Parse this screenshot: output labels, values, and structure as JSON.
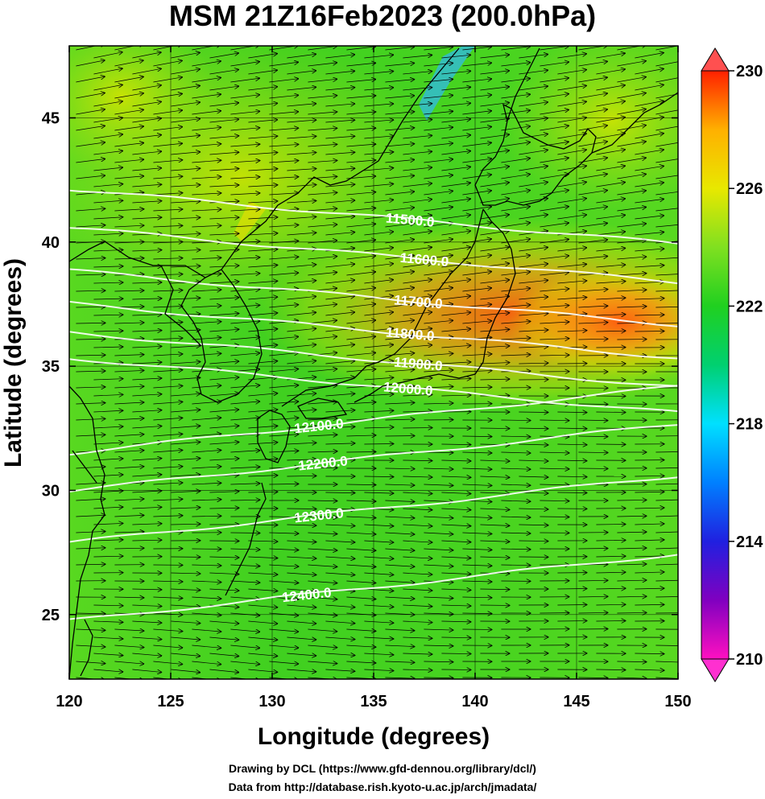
{
  "title": "MSM 21Z16Feb2023 (200.0hPa)",
  "x_axis": {
    "label": "Longitude (degrees)",
    "min": 120,
    "max": 150,
    "ticks": [
      "120",
      "125",
      "130",
      "135",
      "140",
      "145",
      "150"
    ]
  },
  "y_axis": {
    "label": "Latitude  (degrees)",
    "min": 22.4,
    "max": 47.9,
    "ticks": [
      "25",
      "30",
      "35",
      "40",
      "45"
    ]
  },
  "colorbar": {
    "min": 210,
    "max": 230,
    "labels": [
      "230",
      "226",
      "222",
      "218",
      "214",
      "210"
    ],
    "colors": [
      "#ff10c0",
      "#8000c0",
      "#2020e0",
      "#0080ff",
      "#00e0ff",
      "#00d070",
      "#20d020",
      "#80e020",
      "#e8e800",
      "#ffb000",
      "#ff5000",
      "#ff2000"
    ]
  },
  "contours": [
    {
      "label": "11500.0",
      "lon": 136.8,
      "lat": 40.9
    },
    {
      "label": "11600.0",
      "lon": 137.5,
      "lat": 39.3
    },
    {
      "label": "11700.0",
      "lon": 137.2,
      "lat": 37.6
    },
    {
      "label": "11800.0",
      "lon": 136.8,
      "lat": 36.3
    },
    {
      "label": "11900.0",
      "lon": 137.2,
      "lat": 35.1
    },
    {
      "label": "12000.0",
      "lon": 136.7,
      "lat": 34.1
    },
    {
      "label": "12100.0",
      "lon": 132.3,
      "lat": 32.6
    },
    {
      "label": "12200.0",
      "lon": 132.5,
      "lat": 31.1
    },
    {
      "label": "12300.0",
      "lon": 132.3,
      "lat": 29.0
    },
    {
      "label": "12400.0",
      "lon": 131.7,
      "lat": 25.8
    }
  ],
  "credits": {
    "line1": "Drawing by DCL (https://www.gfd-dennou.org/library/dcl/)",
    "line2": "Data from http://database.rish.kyoto-u.ac.jp/arch/jmadata/"
  }
}
